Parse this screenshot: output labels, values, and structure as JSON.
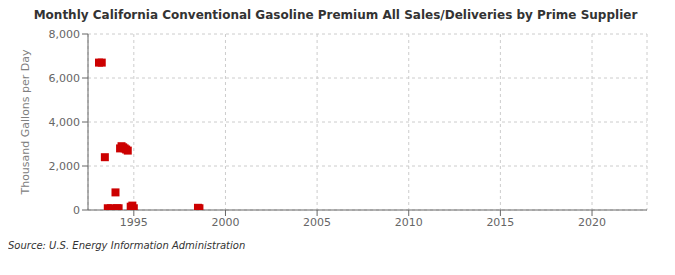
{
  "chart_data": {
    "type": "scatter",
    "title": "Monthly California Conventional Gasoline Premium All Sales/Deliveries by Prime Supplier",
    "ylabel": "Thousand Gallons per Day",
    "source": "Source: U.S. Energy Information Administration",
    "color": "#cc0000",
    "marker": "square",
    "grid": true,
    "xlim": [
      1992.5,
      2023
    ],
    "ylim": [
      0,
      8000
    ],
    "xticks": [
      1995,
      2000,
      2005,
      2010,
      2015,
      2020
    ],
    "yticks": [
      0,
      {
        "value": 2000,
        "label": "2,000"
      },
      {
        "value": 4000,
        "label": "4,000"
      },
      {
        "value": 6000,
        "label": "6,000"
      },
      {
        "value": 8000,
        "label": "8,000"
      }
    ],
    "x": [
      1993.1,
      1993.25,
      1993.42,
      1993.58,
      1993.75,
      1994.0,
      1994.08,
      1994.17,
      1994.25,
      1994.33,
      1994.42,
      1994.5,
      1994.58,
      1994.67,
      1994.83,
      1994.92,
      1995.0,
      1998.5,
      1998.58
    ],
    "values": [
      6700,
      6700,
      2400,
      80,
      80,
      800,
      80,
      80,
      2800,
      2900,
      2850,
      2800,
      2750,
      2700,
      150,
      200,
      80,
      100,
      80
    ]
  }
}
